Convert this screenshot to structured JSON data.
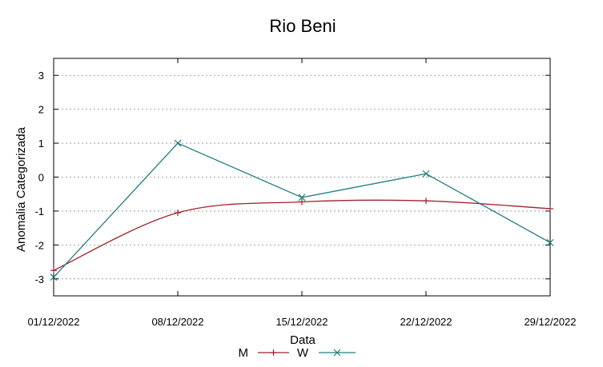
{
  "chart_data": {
    "type": "line",
    "title": "Rio Beni",
    "xlabel": "Data",
    "ylabel": "Anomalia Categorizada",
    "categories": [
      "01/12/2022",
      "08/12/2022",
      "15/12/2022",
      "22/12/2022",
      "29/12/2022"
    ],
    "ylim": [
      -3.5,
      3.5
    ],
    "yticks": [
      -3,
      -2,
      -1,
      0,
      1,
      2,
      3
    ],
    "grid": true,
    "legend_position": "bottom",
    "series": [
      {
        "name": "M",
        "color": "#a0222b",
        "marker": "plus",
        "smooth": true,
        "points": [
          {
            "x": "01/12/2022",
            "y": -2.75
          },
          {
            "x": "08/12/2022",
            "y": -1.05
          },
          {
            "x": "15/12/2022",
            "y": -0.73
          },
          {
            "x": "22/12/2022",
            "y": -0.7
          },
          {
            "x": "29/12/2022",
            "y": -0.93
          }
        ]
      },
      {
        "name": "W",
        "color": "#1e7d80",
        "marker": "x",
        "smooth": false,
        "points": [
          {
            "x": "01/12/2022",
            "y": -2.95
          },
          {
            "x": "08/12/2022",
            "y": 1.0
          },
          {
            "x": "15/12/2022",
            "y": -0.6
          },
          {
            "x": "22/12/2022",
            "y": 0.1
          },
          {
            "x": "29/12/2022",
            "y": -1.93
          }
        ]
      }
    ]
  }
}
